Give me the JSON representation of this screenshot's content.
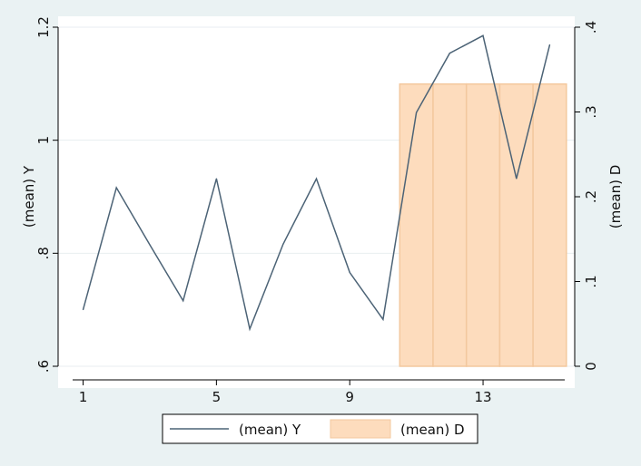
{
  "chart_data": {
    "type": "line+bar",
    "x": [
      1,
      2,
      3,
      4,
      5,
      6,
      7,
      8,
      9,
      10,
      11,
      12,
      13,
      14,
      15
    ],
    "x_ticks": [
      "1",
      "5",
      "9",
      "13"
    ],
    "xlim": [
      0.25,
      15.75
    ],
    "series": [
      {
        "name": "(mean) Y",
        "kind": "line",
        "axis": "left",
        "color": "#4c6376",
        "values": [
          0.7,
          0.916,
          0.815,
          0.716,
          0.932,
          0.666,
          0.816,
          0.932,
          0.766,
          0.683,
          1.049,
          1.154,
          1.185,
          0.932,
          1.169
        ]
      },
      {
        "name": "(mean) D",
        "kind": "bar",
        "axis": "right",
        "color": "#fddcbd",
        "edge_color": "#f3c89e",
        "values": [
          0,
          0,
          0,
          0,
          0,
          0,
          0,
          0,
          0,
          0,
          0.333,
          0.333,
          0.333,
          0.333,
          0.333
        ]
      }
    ],
    "left_axis": {
      "label": "(mean) Y",
      "ylim": [
        0.6,
        1.2
      ],
      "ticks": [
        {
          "value": 0.6,
          "label": ".6"
        },
        {
          "value": 0.8,
          "label": ".8"
        },
        {
          "value": 1.0,
          "label": "1"
        },
        {
          "value": 1.2,
          "label": "1.2"
        }
      ]
    },
    "right_axis": {
      "label": "(mean) D",
      "ylim": [
        0,
        0.4
      ],
      "ticks": [
        {
          "value": 0,
          "label": "0"
        },
        {
          "value": 0.1,
          "label": ".1"
        },
        {
          "value": 0.2,
          "label": ".2"
        },
        {
          "value": 0.3,
          "label": ".3"
        },
        {
          "value": 0.4,
          "label": ".4"
        }
      ]
    },
    "grid": true,
    "legend": {
      "placement": "bottom",
      "entries": [
        "(mean) Y",
        "(mean) D"
      ]
    },
    "colors": {
      "background": "#eaf2f3",
      "plot_background": "#ffffff",
      "gridline": "#e8eef0",
      "axis": "#000000"
    }
  }
}
